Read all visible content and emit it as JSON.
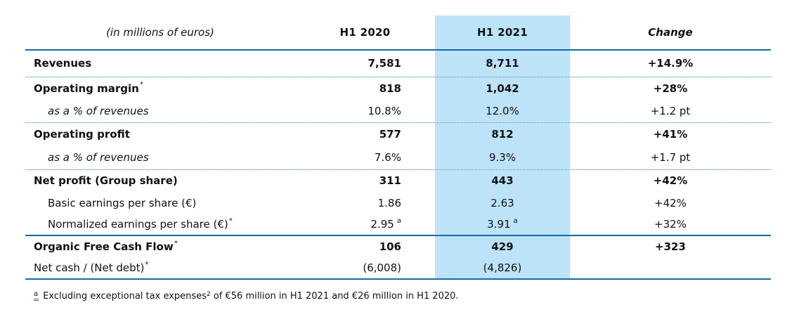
{
  "colors": {
    "band_bg": "#BCE3F8",
    "line_solid": "#1769A8",
    "line_dotted": "#1E7F9B",
    "fn_underline": "#3A66CC",
    "text_color": "#111111"
  },
  "header": {
    "unit_label": "(in millions of euros)",
    "col_2020": "H1 2020",
    "col_2021": "H1 2021",
    "col_change": "Change"
  },
  "rows": [
    {
      "id": "revenues",
      "label": "Revenues",
      "label_sup": "",
      "bold": true,
      "italic": false,
      "indent": false,
      "v2020": "7,581",
      "v2020_sup": "",
      "v2021": "8,711",
      "v2021_sup": "",
      "change": "+14.9%",
      "change_bold": true,
      "divider_after": "dotted"
    },
    {
      "id": "operating-margin",
      "label": "Operating margin",
      "label_sup": "*",
      "bold": true,
      "italic": false,
      "indent": false,
      "v2020": "818",
      "v2020_sup": "",
      "v2021": "1,042",
      "v2021_sup": "",
      "change": "+28%",
      "change_bold": true,
      "divider_after": ""
    },
    {
      "id": "operating-margin-pct",
      "label": "as a % of revenues",
      "label_sup": "",
      "bold": false,
      "italic": true,
      "indent": true,
      "v2020": "10.8%",
      "v2020_sup": "",
      "v2021": "12.0%",
      "v2021_sup": "",
      "change": "+1.2 pt",
      "change_bold": false,
      "divider_after": "dotted"
    },
    {
      "id": "operating-profit",
      "label": "Operating profit",
      "label_sup": "",
      "bold": true,
      "italic": false,
      "indent": false,
      "v2020": "577",
      "v2020_sup": "",
      "v2021": "812",
      "v2021_sup": "",
      "change": "+41%",
      "change_bold": true,
      "divider_after": ""
    },
    {
      "id": "operating-profit-pct",
      "label": "as a % of revenues",
      "label_sup": "",
      "bold": false,
      "italic": true,
      "indent": true,
      "v2020": "7.6%",
      "v2020_sup": "",
      "v2021": "9.3%",
      "v2021_sup": "",
      "change": "+1.7 pt",
      "change_bold": false,
      "divider_after": "dotted"
    },
    {
      "id": "net-profit",
      "label": "Net profit (Group share)",
      "label_sup": "",
      "bold": true,
      "italic": false,
      "indent": false,
      "v2020": "311",
      "v2020_sup": "",
      "v2021": "443",
      "v2021_sup": "",
      "change": "+42%",
      "change_bold": true,
      "divider_after": ""
    },
    {
      "id": "basic-eps",
      "label": "Basic earnings per share (€)",
      "label_sup": "",
      "bold": false,
      "italic": false,
      "indent": true,
      "v2020": "1.86",
      "v2020_sup": "",
      "v2021": "2.63",
      "v2021_sup": "",
      "change": "+42%",
      "change_bold": false,
      "divider_after": ""
    },
    {
      "id": "normalized-eps",
      "label": "Normalized earnings per share (€)",
      "label_sup": "*",
      "bold": false,
      "italic": false,
      "indent": true,
      "v2020": "2.95",
      "v2020_sup": "a",
      "v2021": "3.91",
      "v2021_sup": "a",
      "change": "+32%",
      "change_bold": false,
      "divider_after": "solid"
    },
    {
      "id": "organic-free-cash-flow",
      "label": "Organic Free Cash Flow",
      "label_sup": "*",
      "bold": true,
      "italic": false,
      "indent": false,
      "v2020": "106",
      "v2020_sup": "",
      "v2021": "429",
      "v2021_sup": "",
      "change": "+323",
      "change_bold": true,
      "divider_after": ""
    },
    {
      "id": "net-cash",
      "label": "Net cash / (Net debt)",
      "label_sup": "*",
      "bold": false,
      "italic": false,
      "indent": false,
      "v2020": "(6,008)",
      "v2020_sup": "",
      "v2021": "(4,826)",
      "v2021_sup": "",
      "change": "",
      "change_bold": false,
      "divider_after": "solid"
    }
  ],
  "footnote": {
    "marker": "a",
    "text": "Excluding exceptional tax expenses",
    "sup": "2",
    "text2": " of €56 million in H1 2021 and €26 million in H1 2020."
  }
}
